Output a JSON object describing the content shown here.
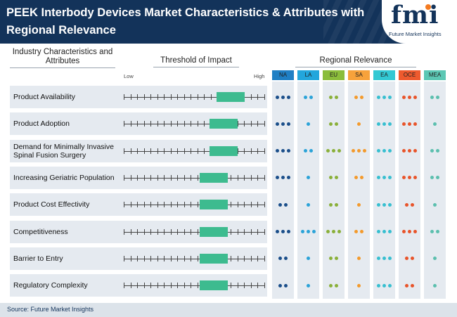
{
  "title": "PEEK Interbody Devices Market Characteristics & Attributes with Regional Relevance",
  "logo": {
    "mark": "fmi",
    "name": "Future Market Insights"
  },
  "headers": {
    "industry": "Industry Characteristics and Attributes",
    "threshold": "Threshold of Impact",
    "regional": "Regional Relevance"
  },
  "scale": {
    "low": "Low",
    "high": "High"
  },
  "colors": {
    "header_bg": "#13335a",
    "impact_bar": "#3dbb8f",
    "row_bg": "#e5eaf0"
  },
  "chart_data": {
    "type": "table",
    "impact_scale_ticks": 22,
    "regions": [
      {
        "code": "NA",
        "header_color": "#1f7fc4",
        "dot_color": "#1a4e8a"
      },
      {
        "code": "LA",
        "header_color": "#23a6dc",
        "dot_color": "#2ba3d8"
      },
      {
        "code": "EU",
        "header_color": "#8bbd3b",
        "dot_color": "#8ab03a"
      },
      {
        "code": "SA",
        "header_color": "#f7a23b",
        "dot_color": "#f39a2c"
      },
      {
        "code": "EA",
        "header_color": "#33c8d3",
        "dot_color": "#37bfd0"
      },
      {
        "code": "OCE",
        "header_color": "#ee5a2e",
        "dot_color": "#e8542a"
      },
      {
        "code": "MEA",
        "header_color": "#5cc7b4",
        "dot_color": "#5bbfae"
      }
    ],
    "rows": [
      {
        "label": "Product Availability",
        "impact": [
          0.66,
          0.86
        ],
        "dots": [
          3,
          2,
          2,
          2,
          3,
          3,
          2
        ]
      },
      {
        "label": "Product Adoption",
        "impact": [
          0.61,
          0.81
        ],
        "dots": [
          3,
          1,
          2,
          1,
          3,
          3,
          1
        ]
      },
      {
        "label": "Demand for Minimally Invasive Spinal Fusion Surgery",
        "impact": [
          0.61,
          0.81
        ],
        "dots": [
          3,
          2,
          3,
          3,
          3,
          3,
          2
        ]
      },
      {
        "label": "Increasing Geriatric Population",
        "impact": [
          0.54,
          0.74
        ],
        "dots": [
          3,
          1,
          2,
          2,
          3,
          3,
          2
        ]
      },
      {
        "label": "Product Cost Effectivity",
        "impact": [
          0.54,
          0.74
        ],
        "dots": [
          2,
          1,
          2,
          1,
          3,
          2,
          1
        ]
      },
      {
        "label": "Competitiveness",
        "impact": [
          0.54,
          0.74
        ],
        "dots": [
          3,
          3,
          3,
          2,
          3,
          3,
          2
        ]
      },
      {
        "label": "Barrier to Entry",
        "impact": [
          0.54,
          0.74
        ],
        "dots": [
          2,
          1,
          2,
          1,
          3,
          2,
          1
        ]
      },
      {
        "label": "Regulatory Complexity",
        "impact": [
          0.54,
          0.74
        ],
        "dots": [
          2,
          1,
          2,
          1,
          3,
          2,
          1
        ]
      }
    ]
  },
  "footer": {
    "source": "Source: Future Market Insights"
  }
}
